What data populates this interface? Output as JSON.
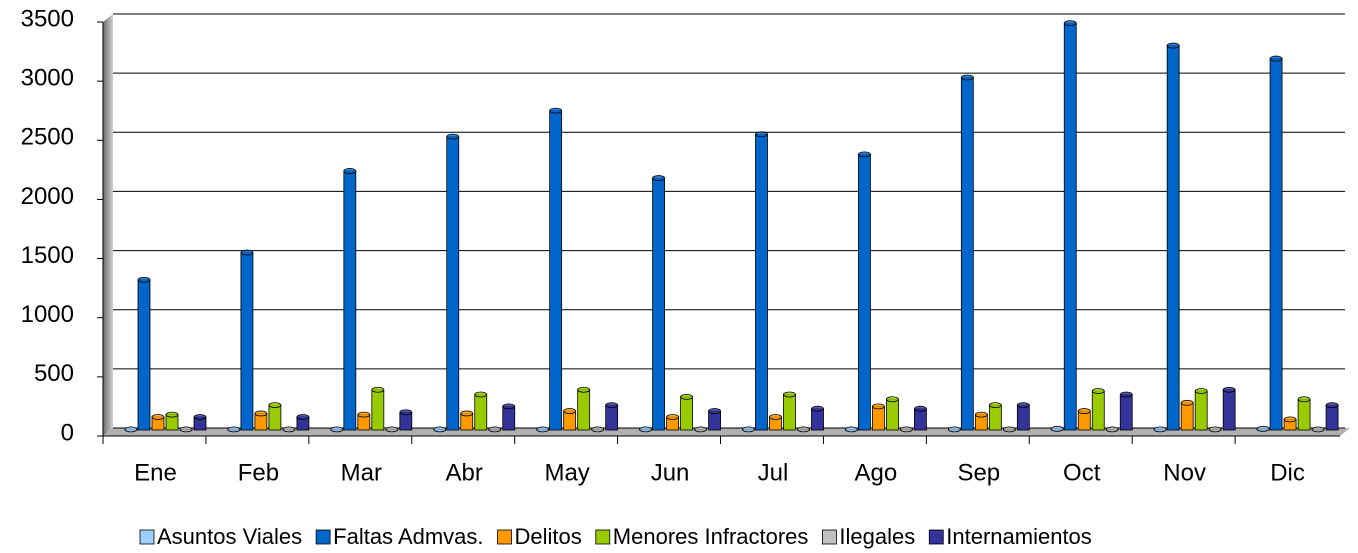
{
  "chart_data": {
    "type": "bar",
    "categories": [
      "Ene",
      "Feb",
      "Mar",
      "Abr",
      "May",
      "Jun",
      "Jul",
      "Ago",
      "Sep",
      "Oct",
      "Nov",
      "Dic"
    ],
    "series": [
      {
        "name": "Asuntos Viales",
        "color": "#9fcfff",
        "values": [
          5,
          5,
          5,
          5,
          5,
          5,
          5,
          5,
          5,
          10,
          5,
          10
        ]
      },
      {
        "name": "Faltas Admvas.",
        "color": "#0066cc",
        "values": [
          1270,
          1500,
          2190,
          2480,
          2700,
          2130,
          2500,
          2330,
          2980,
          3440,
          3250,
          3140
        ]
      },
      {
        "name": "Delitos",
        "color": "#ff9900",
        "values": [
          110,
          140,
          130,
          140,
          160,
          110,
          110,
          200,
          130,
          160,
          230,
          90
        ]
      },
      {
        "name": "Menores Infractores",
        "color": "#99cc00",
        "values": [
          130,
          210,
          340,
          300,
          340,
          280,
          300,
          260,
          210,
          330,
          330,
          260
        ]
      },
      {
        "name": "Ilegales",
        "color": "#c0c0c0",
        "values": [
          5,
          5,
          5,
          5,
          5,
          5,
          5,
          5,
          5,
          5,
          5,
          5
        ]
      },
      {
        "name": "Internamientos",
        "color": "#333399",
        "values": [
          110,
          110,
          150,
          200,
          210,
          160,
          180,
          180,
          210,
          300,
          340,
          210
        ]
      }
    ],
    "ylim": [
      0,
      3500
    ],
    "yticks": [
      0,
      500,
      1000,
      1500,
      2000,
      2500,
      3000,
      3500
    ],
    "grid": true,
    "legend": "bottom"
  }
}
